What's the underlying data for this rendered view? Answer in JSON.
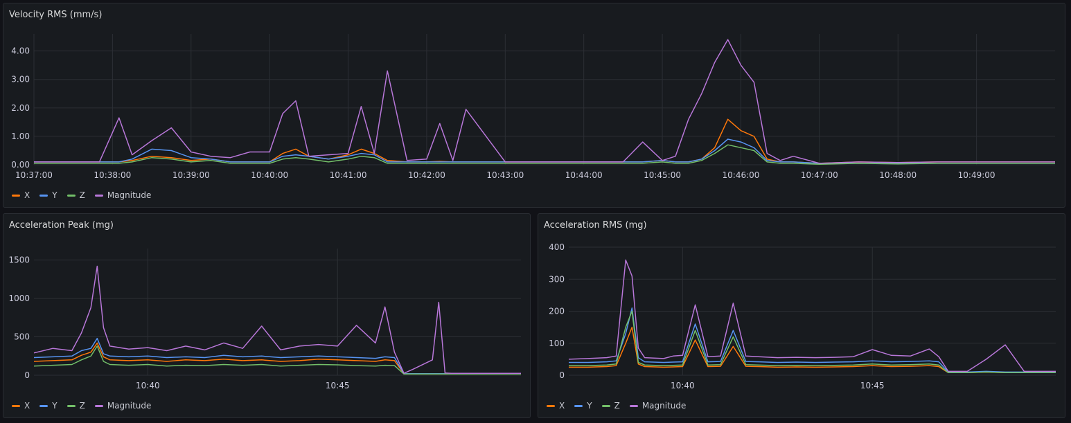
{
  "series_colors": {
    "X": "#ff780a",
    "Y": "#5794f2",
    "Z": "#73bf69",
    "Magnitude": "#b877d9"
  },
  "panels": [
    {
      "id": "velocity",
      "title": "Velocity RMS (mm/s)",
      "legend": [
        "X",
        "Y",
        "Z",
        "Magnitude"
      ]
    },
    {
      "id": "accel-peak",
      "title": "Acceleration Peak (mg)",
      "legend": [
        "X",
        "Y",
        "Z",
        "Magnitude"
      ]
    },
    {
      "id": "accel-rms",
      "title": "Acceleration RMS (mg)",
      "legend": [
        "X",
        "Y",
        "Z",
        "Magnitude"
      ]
    }
  ],
  "chart_data": [
    {
      "type": "line",
      "title": "Velocity RMS (mm/s)",
      "x_range": [
        "10:37:00",
        "10:50:00"
      ],
      "x_ticks": [
        "10:37:00",
        "10:38:00",
        "10:39:00",
        "10:40:00",
        "10:41:00",
        "10:42:00",
        "10:43:00",
        "10:44:00",
        "10:45:00",
        "10:46:00",
        "10:47:00",
        "10:48:00",
        "10:49:00"
      ],
      "y_ticks": [
        "0.00",
        "1.00",
        "2.00",
        "3.00",
        "4.00"
      ],
      "ylim": [
        0,
        4.6
      ],
      "grid": true,
      "legend_position": "bottom-left",
      "x": [
        "10:37:00",
        "10:37:25",
        "10:37:50",
        "10:38:05",
        "10:38:15",
        "10:38:30",
        "10:38:45",
        "10:39:00",
        "10:39:15",
        "10:39:30",
        "10:39:45",
        "10:40:00",
        "10:40:10",
        "10:40:20",
        "10:40:30",
        "10:40:45",
        "10:41:00",
        "10:41:10",
        "10:41:20",
        "10:41:30",
        "10:41:45",
        "10:42:00",
        "10:42:10",
        "10:42:20",
        "10:42:30",
        "10:43:00",
        "10:44:00",
        "10:44:30",
        "10:44:45",
        "10:45:00",
        "10:45:10",
        "10:45:20",
        "10:45:30",
        "10:45:40",
        "10:45:50",
        "10:46:00",
        "10:46:10",
        "10:46:20",
        "10:46:30",
        "10:46:40",
        "10:47:00",
        "10:47:30",
        "10:48:00",
        "10:48:30",
        "10:49:00",
        "10:49:30",
        "10:50:00"
      ],
      "series": [
        {
          "name": "X",
          "values": [
            0.1,
            0.1,
            0.1,
            0.1,
            0.15,
            0.3,
            0.25,
            0.15,
            0.2,
            0.1,
            0.1,
            0.1,
            0.4,
            0.55,
            0.3,
            0.2,
            0.35,
            0.55,
            0.4,
            0.15,
            0.1,
            0.1,
            0.12,
            0.1,
            0.1,
            0.1,
            0.1,
            0.1,
            0.1,
            0.15,
            0.1,
            0.1,
            0.2,
            0.6,
            1.6,
            1.2,
            1.0,
            0.2,
            0.1,
            0.1,
            0.05,
            0.1,
            0.08,
            0.1,
            0.1,
            0.1,
            0.1
          ]
        },
        {
          "name": "Y",
          "values": [
            0.1,
            0.1,
            0.1,
            0.1,
            0.2,
            0.55,
            0.5,
            0.25,
            0.2,
            0.1,
            0.1,
            0.1,
            0.3,
            0.35,
            0.3,
            0.2,
            0.3,
            0.4,
            0.35,
            0.1,
            0.1,
            0.1,
            0.1,
            0.1,
            0.1,
            0.1,
            0.1,
            0.1,
            0.1,
            0.15,
            0.1,
            0.1,
            0.2,
            0.5,
            0.9,
            0.8,
            0.6,
            0.15,
            0.1,
            0.1,
            0.05,
            0.05,
            0.05,
            0.05,
            0.05,
            0.05,
            0.05
          ]
        },
        {
          "name": "Z",
          "values": [
            0.05,
            0.05,
            0.05,
            0.05,
            0.1,
            0.25,
            0.2,
            0.1,
            0.15,
            0.05,
            0.05,
            0.05,
            0.2,
            0.25,
            0.2,
            0.1,
            0.2,
            0.3,
            0.25,
            0.05,
            0.05,
            0.05,
            0.05,
            0.05,
            0.05,
            0.05,
            0.05,
            0.05,
            0.05,
            0.1,
            0.05,
            0.05,
            0.15,
            0.4,
            0.7,
            0.6,
            0.5,
            0.1,
            0.05,
            0.05,
            0.02,
            0.05,
            0.03,
            0.05,
            0.05,
            0.05,
            0.05
          ]
        },
        {
          "name": "Magnitude",
          "values": [
            0.1,
            0.1,
            0.1,
            1.65,
            0.35,
            0.85,
            1.3,
            0.45,
            0.3,
            0.25,
            0.45,
            0.45,
            1.8,
            2.25,
            0.3,
            0.35,
            0.4,
            2.05,
            0.4,
            3.3,
            0.15,
            0.2,
            1.45,
            0.15,
            1.95,
            0.1,
            0.1,
            0.1,
            0.8,
            0.15,
            0.3,
            1.6,
            2.5,
            3.6,
            4.4,
            3.5,
            2.9,
            0.4,
            0.15,
            0.3,
            0.05,
            0.1,
            0.08,
            0.1,
            0.1,
            0.1,
            0.1
          ]
        }
      ]
    },
    {
      "type": "line",
      "title": "Acceleration Peak (mg)",
      "x_ticks": [
        "10:40",
        "10:45"
      ],
      "y_ticks": [
        "0",
        "500",
        "1000",
        "1500"
      ],
      "ylim": [
        0,
        1650
      ],
      "grid": true,
      "legend_position": "bottom-left",
      "x": [
        "10:37:00",
        "10:37:30",
        "10:38:00",
        "10:38:15",
        "10:38:30",
        "10:38:40",
        "10:38:50",
        "10:39:00",
        "10:39:30",
        "10:40:00",
        "10:40:30",
        "10:41:00",
        "10:41:30",
        "10:42:00",
        "10:42:30",
        "10:43:00",
        "10:43:30",
        "10:44:00",
        "10:44:30",
        "10:45:00",
        "10:45:30",
        "10:46:00",
        "10:46:15",
        "10:46:30",
        "10:46:45",
        "10:47:00",
        "10:47:30",
        "10:47:40",
        "10:47:50",
        "10:48:00",
        "10:49:00",
        "10:49:50"
      ],
      "series": [
        {
          "name": "X",
          "values": [
            180,
            190,
            200,
            260,
            300,
            420,
            240,
            200,
            190,
            200,
            180,
            200,
            190,
            210,
            190,
            200,
            180,
            190,
            210,
            200,
            190,
            180,
            200,
            190,
            20,
            20,
            20,
            20,
            20,
            20,
            20,
            20
          ]
        },
        {
          "name": "Y",
          "values": [
            230,
            240,
            250,
            320,
            350,
            480,
            280,
            250,
            240,
            250,
            230,
            240,
            230,
            260,
            240,
            250,
            230,
            240,
            250,
            240,
            230,
            220,
            240,
            230,
            20,
            20,
            20,
            20,
            20,
            20,
            20,
            20
          ]
        },
        {
          "name": "Z",
          "values": [
            120,
            130,
            140,
            200,
            250,
            380,
            180,
            140,
            130,
            140,
            120,
            130,
            125,
            140,
            130,
            140,
            120,
            130,
            140,
            135,
            125,
            120,
            130,
            125,
            15,
            15,
            15,
            15,
            15,
            15,
            15,
            15
          ]
        },
        {
          "name": "Magnitude",
          "values": [
            290,
            350,
            320,
            550,
            880,
            1420,
            620,
            380,
            340,
            360,
            320,
            380,
            330,
            420,
            350,
            640,
            330,
            380,
            400,
            380,
            650,
            420,
            890,
            300,
            25,
            80,
            200,
            950,
            30,
            25,
            25,
            25
          ]
        }
      ]
    },
    {
      "type": "line",
      "title": "Acceleration RMS (mg)",
      "x_ticks": [
        "10:40",
        "10:45"
      ],
      "y_ticks": [
        "0",
        "100",
        "200",
        "300",
        "400"
      ],
      "ylim": [
        0,
        400
      ],
      "grid": true,
      "legend_position": "bottom-left",
      "x": [
        "10:37:00",
        "10:37:30",
        "10:38:00",
        "10:38:15",
        "10:38:30",
        "10:38:40",
        "10:38:50",
        "10:39:00",
        "10:39:30",
        "10:39:45",
        "10:40:00",
        "10:40:20",
        "10:40:40",
        "10:41:00",
        "10:41:20",
        "10:41:40",
        "10:42:00",
        "10:42:30",
        "10:43:00",
        "10:43:30",
        "10:44:00",
        "10:44:30",
        "10:45:00",
        "10:45:30",
        "10:46:00",
        "10:46:30",
        "10:46:45",
        "10:47:00",
        "10:47:30",
        "10:48:00",
        "10:48:30",
        "10:49:00",
        "10:49:50"
      ],
      "series": [
        {
          "name": "X",
          "values": [
            25,
            25,
            27,
            30,
            100,
            150,
            35,
            27,
            25,
            26,
            27,
            110,
            27,
            28,
            90,
            28,
            27,
            25,
            26,
            25,
            26,
            27,
            30,
            27,
            28,
            30,
            27,
            8,
            8,
            10,
            8,
            8,
            8
          ]
        },
        {
          "name": "Y",
          "values": [
            40,
            40,
            42,
            45,
            130,
            210,
            55,
            42,
            40,
            41,
            42,
            160,
            42,
            43,
            140,
            43,
            42,
            40,
            41,
            40,
            41,
            42,
            45,
            42,
            43,
            45,
            42,
            10,
            10,
            12,
            10,
            10,
            10
          ]
        },
        {
          "name": "Z",
          "values": [
            30,
            30,
            32,
            35,
            150,
            200,
            40,
            32,
            30,
            31,
            32,
            140,
            32,
            33,
            120,
            33,
            32,
            30,
            31,
            30,
            31,
            32,
            35,
            32,
            33,
            35,
            32,
            8,
            8,
            10,
            8,
            8,
            8
          ]
        },
        {
          "name": "Magnitude",
          "values": [
            50,
            52,
            55,
            60,
            360,
            310,
            85,
            55,
            52,
            60,
            62,
            220,
            58,
            60,
            225,
            60,
            58,
            55,
            56,
            55,
            56,
            58,
            80,
            62,
            60,
            82,
            58,
            12,
            12,
            50,
            95,
            12,
            12
          ]
        }
      ]
    }
  ]
}
